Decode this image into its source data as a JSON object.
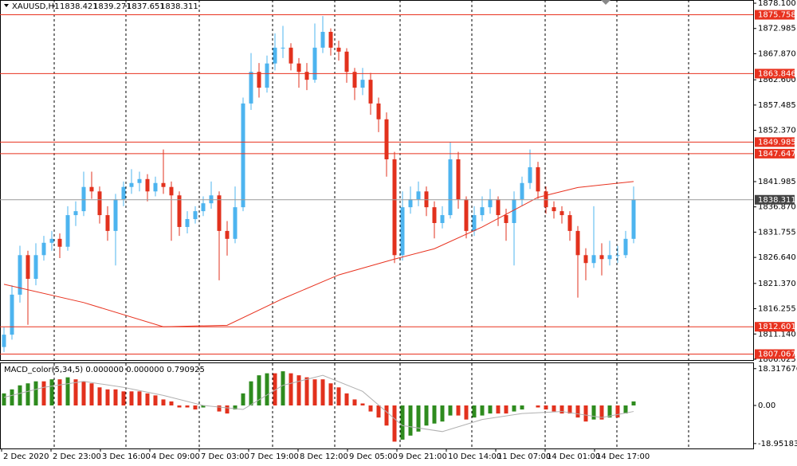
{
  "header": {
    "symbol": "XAUUSD,H1",
    "quote": [
      "1838.421",
      "1839.271",
      "1837.651",
      "1838.311"
    ]
  },
  "chart_data": [
    {
      "type": "candlestick",
      "up_color": "#4db4ef",
      "down_color": "#e2311d",
      "ylim": [
        1805.86,
        1878.75
      ],
      "yticks": [
        {
          "value": 1878.1,
          "label": "1878.100"
        },
        {
          "value": 1872.985,
          "label": "1872.985"
        },
        {
          "value": 1867.87,
          "label": "1867.870"
        },
        {
          "value": 1862.6,
          "label": "1862.600"
        },
        {
          "value": 1857.485,
          "label": "1857.485"
        },
        {
          "value": 1852.37,
          "label": "1852.370"
        },
        {
          "value": 1841.985,
          "label": "1841.985"
        },
        {
          "value": 1836.87,
          "label": "1836.870"
        },
        {
          "value": 1831.755,
          "label": "1831.755"
        },
        {
          "value": 1826.64,
          "label": "1826.640"
        },
        {
          "value": 1821.37,
          "label": "1821.370"
        },
        {
          "value": 1816.255,
          "label": "1816.255"
        },
        {
          "value": 1811.14,
          "label": "1811.140"
        },
        {
          "value": 1806.025,
          "label": "1806.025"
        }
      ],
      "x_labels": [
        "2 Dec 2020",
        "2 Dec 23:00",
        "3 Dec 16:00",
        "4 Dec 09:00",
        "7 Dec 03:00",
        "7 Dec 19:00",
        "8 Dec 12:00",
        "9 Dec 05:00",
        "9 Dec 21:00",
        "10 Dec 14:00",
        "11 Dec 07:00",
        "14 Dec 01:00",
        "14 Dec 17:00"
      ],
      "levels": [
        {
          "value": 1875.758,
          "label": "1875.758"
        },
        {
          "value": 1863.846,
          "label": "1863.846"
        },
        {
          "value": 1849.985,
          "label": "1849.985"
        },
        {
          "value": 1847.647,
          "label": "1847.647"
        },
        {
          "value": 1812.601,
          "label": "1812.601"
        },
        {
          "value": 1807.067,
          "label": "1807.067"
        }
      ],
      "level_color": "#e8321f",
      "last_price": {
        "value": 1838.311,
        "label": "1838.311"
      },
      "candles": [
        [
          1808.5,
          1812.5,
          1807.5,
          1811.0
        ],
        [
          1811.0,
          1821.0,
          1810.0,
          1819.1
        ],
        [
          1819.1,
          1829.0,
          1817.5,
          1827.1
        ],
        [
          1827.1,
          1828.0,
          1813.0,
          1822.3
        ],
        [
          1822.3,
          1829.5,
          1821.0,
          1827.1
        ],
        [
          1827.1,
          1831.0,
          1826.0,
          1829.6
        ],
        [
          1829.6,
          1832.0,
          1828.0,
          1830.4
        ],
        [
          1830.4,
          1831.5,
          1826.5,
          1828.8
        ],
        [
          1828.8,
          1837.0,
          1828.0,
          1835.2
        ],
        [
          1835.2,
          1838.0,
          1833.0,
          1836.0
        ],
        [
          1836.0,
          1844.0,
          1835.0,
          1840.9
        ],
        [
          1840.9,
          1844.0,
          1838.5,
          1840.0
        ],
        [
          1840.0,
          1841.0,
          1833.5,
          1835.2
        ],
        [
          1835.2,
          1837.0,
          1830.0,
          1832.0
        ],
        [
          1832.0,
          1839.5,
          1825.0,
          1838.4
        ],
        [
          1838.4,
          1842.0,
          1837.0,
          1840.9
        ],
        [
          1840.9,
          1844.5,
          1839.5,
          1841.7
        ],
        [
          1841.7,
          1844.0,
          1840.0,
          1842.5
        ],
        [
          1842.5,
          1843.5,
          1838.0,
          1840.0
        ],
        [
          1840.0,
          1843.0,
          1839.0,
          1841.7
        ],
        [
          1841.7,
          1848.5,
          1839.5,
          1840.9
        ],
        [
          1840.9,
          1842.0,
          1830.0,
          1839.2
        ],
        [
          1839.2,
          1840.0,
          1831.0,
          1832.8
        ],
        [
          1832.8,
          1836.0,
          1831.5,
          1834.4
        ],
        [
          1834.4,
          1837.0,
          1833.5,
          1836.0
        ],
        [
          1836.0,
          1839.0,
          1835.0,
          1837.6
        ],
        [
          1837.6,
          1842.0,
          1836.5,
          1839.2
        ],
        [
          1839.2,
          1840.0,
          1822.0,
          1832.0
        ],
        [
          1832.0,
          1834.0,
          1827.0,
          1830.4
        ],
        [
          1830.4,
          1841.0,
          1829.5,
          1836.8
        ],
        [
          1836.8,
          1859.0,
          1836.0,
          1857.8
        ],
        [
          1857.8,
          1868.0,
          1856.5,
          1864.2
        ],
        [
          1864.2,
          1866.0,
          1859.0,
          1861.0
        ],
        [
          1861.0,
          1867.5,
          1860.0,
          1865.9
        ],
        [
          1865.9,
          1872.0,
          1864.5,
          1869.1
        ],
        [
          1869.1,
          1873.5,
          1867.0,
          1869.1
        ],
        [
          1869.1,
          1870.0,
          1864.5,
          1865.9
        ],
        [
          1865.9,
          1867.0,
          1861.0,
          1864.2
        ],
        [
          1864.2,
          1866.0,
          1860.5,
          1862.6
        ],
        [
          1862.6,
          1874.0,
          1862.0,
          1869.1
        ],
        [
          1869.1,
          1875.5,
          1868.0,
          1872.3
        ],
        [
          1872.3,
          1873.0,
          1867.5,
          1869.1
        ],
        [
          1869.1,
          1870.5,
          1866.5,
          1868.3
        ],
        [
          1868.3,
          1869.0,
          1862.0,
          1864.2
        ],
        [
          1864.2,
          1865.0,
          1858.5,
          1861.0
        ],
        [
          1861.0,
          1865.0,
          1859.5,
          1862.6
        ],
        [
          1862.6,
          1864.0,
          1855.5,
          1857.8
        ],
        [
          1857.8,
          1859.0,
          1852.0,
          1854.6
        ],
        [
          1854.6,
          1856.0,
          1843.0,
          1846.5
        ],
        [
          1846.5,
          1848.0,
          1825.5,
          1827.1
        ],
        [
          1827.1,
          1840.0,
          1826.0,
          1836.8
        ],
        [
          1836.8,
          1841.0,
          1835.5,
          1838.4
        ],
        [
          1838.4,
          1842.0,
          1837.0,
          1840.0
        ],
        [
          1840.0,
          1841.0,
          1835.0,
          1836.8
        ],
        [
          1836.8,
          1838.0,
          1830.5,
          1833.6
        ],
        [
          1833.6,
          1837.0,
          1832.5,
          1835.2
        ],
        [
          1835.2,
          1850.0,
          1834.5,
          1846.5
        ],
        [
          1846.5,
          1848.0,
          1836.5,
          1838.4
        ],
        [
          1838.4,
          1839.0,
          1830.5,
          1832.0
        ],
        [
          1832.0,
          1837.0,
          1831.0,
          1835.2
        ],
        [
          1835.2,
          1839.0,
          1834.0,
          1836.8
        ],
        [
          1836.8,
          1840.5,
          1835.5,
          1838.4
        ],
        [
          1838.4,
          1839.0,
          1833.0,
          1835.2
        ],
        [
          1835.2,
          1836.5,
          1830.0,
          1833.6
        ],
        [
          1833.6,
          1840.0,
          1825.0,
          1838.4
        ],
        [
          1838.4,
          1843.0,
          1837.0,
          1841.7
        ],
        [
          1841.7,
          1848.5,
          1840.5,
          1844.9
        ],
        [
          1844.9,
          1846.0,
          1838.5,
          1840.0
        ],
        [
          1840.0,
          1841.0,
          1835.5,
          1836.8
        ],
        [
          1836.8,
          1838.0,
          1834.5,
          1836.0
        ],
        [
          1836.0,
          1837.0,
          1833.5,
          1835.2
        ],
        [
          1835.2,
          1836.0,
          1830.0,
          1832.0
        ],
        [
          1832.0,
          1833.0,
          1818.5,
          1827.1
        ],
        [
          1827.1,
          1828.5,
          1822.0,
          1825.5
        ],
        [
          1825.5,
          1837.0,
          1824.5,
          1827.1
        ],
        [
          1827.1,
          1829.5,
          1823.0,
          1826.3
        ],
        [
          1826.3,
          1830.0,
          1825.0,
          1827.1
        ],
        [
          1827.1,
          1829.0,
          1825.5,
          1827.1
        ],
        [
          1827.1,
          1832.0,
          1826.5,
          1830.4
        ],
        [
          1830.4,
          1841.0,
          1829.5,
          1838.3
        ]
      ],
      "ma": {
        "color": "#e8321f",
        "x": [
          0,
          10,
          20,
          28,
          35,
          42,
          49,
          54,
          60,
          67,
          72,
          79
        ],
        "values": [
          1821.2,
          1817.5,
          1812.6,
          1812.9,
          1818.3,
          1823.1,
          1826.3,
          1828.4,
          1832.8,
          1838.8,
          1840.8,
          1842.0
        ]
      }
    },
    {
      "type": "macd",
      "title": "MACD_color(5,34,5) 0.000000 0.000000 0.790925",
      "up_color": "#2e8b1e",
      "down_color": "#e2311d",
      "signal_color": "#b0b0b0",
      "ylim": [
        -21.4,
        21.0
      ],
      "yticks": [
        {
          "value": 18.317676,
          "label": "18.317676"
        },
        {
          "value": 0,
          "label": "0.00"
        },
        {
          "value": -18.951839,
          "label": "-18.951839"
        }
      ],
      "values": [
        6,
        8,
        10,
        11,
        12,
        12,
        13,
        13,
        14,
        13,
        12,
        11,
        9,
        8,
        8,
        7,
        7,
        7,
        6,
        5,
        3,
        2,
        -1,
        -1,
        -2,
        -1,
        0,
        -3,
        -4,
        -2,
        6,
        12,
        15,
        16,
        16,
        17,
        16,
        15,
        14,
        13,
        13,
        11,
        9,
        6,
        3,
        1,
        -3,
        -6,
        -10,
        -18,
        -17,
        -15,
        -13,
        -10,
        -9,
        -8,
        -5,
        -5,
        -7,
        -6,
        -5,
        -4,
        -4,
        -4,
        -3,
        -2,
        0,
        -1,
        -2,
        -3,
        -4,
        -4,
        -6,
        -8,
        -7,
        -7,
        -6,
        -6,
        -4,
        2
      ],
      "signal": {
        "x": [
          0,
          5,
          10,
          15,
          20,
          25,
          30,
          35,
          40,
          45,
          50,
          55,
          60,
          65,
          70,
          75,
          79
        ],
        "values": [
          4,
          9,
          12,
          9,
          5,
          0,
          -2,
          10,
          15,
          7,
          -10,
          -13,
          -7,
          -4,
          -3,
          -6,
          -3
        ]
      }
    }
  ]
}
